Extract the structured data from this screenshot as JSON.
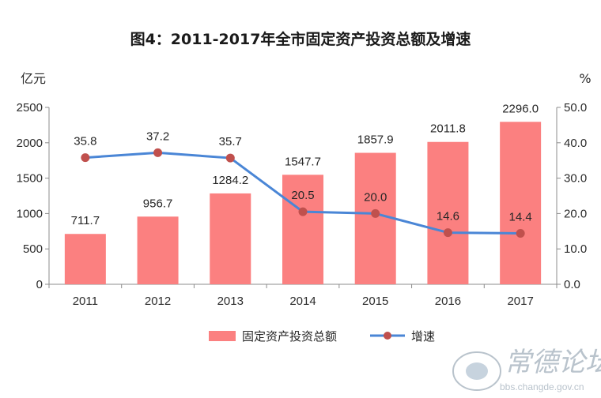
{
  "chart_data": {
    "type": "bar",
    "title": "图4：2011-2017年全市固定资产投资总额及增速",
    "categories": [
      "2011",
      "2012",
      "2013",
      "2014",
      "2015",
      "2016",
      "2017"
    ],
    "series": [
      {
        "name": "固定资产投资总额",
        "type": "bar",
        "axis": "left",
        "color": "#fb8080",
        "values": [
          711.7,
          956.7,
          1284.2,
          1547.7,
          1857.9,
          2011.8,
          2296.0
        ],
        "labels": [
          "711.7",
          "956.7",
          "1284.2",
          "1547.7",
          "1857.9",
          "2011.8",
          "2296.0"
        ]
      },
      {
        "name": "增速",
        "type": "line",
        "axis": "right",
        "color": "#4a86d6",
        "marker_color": "#c0504d",
        "values": [
          35.8,
          37.2,
          35.7,
          20.5,
          20.0,
          14.6,
          14.4
        ],
        "labels": [
          "35.8",
          "37.2",
          "35.7",
          "20.5",
          "20.0",
          "14.6",
          "14.4"
        ]
      }
    ],
    "y_left": {
      "unit": "亿元",
      "ylim": [
        0,
        2500
      ],
      "ticks": [
        "0",
        "500",
        "1000",
        "1500",
        "2000",
        "2500"
      ]
    },
    "y_right": {
      "unit": "%",
      "ylim": [
        0,
        50
      ],
      "ticks": [
        "0.0",
        "10.0",
        "20.0",
        "30.0",
        "40.0",
        "50.0"
      ]
    },
    "grid": false,
    "legend": "bottom"
  },
  "watermark": {
    "text": "常德论坛",
    "url": "bbs.changde.gov.cn"
  }
}
